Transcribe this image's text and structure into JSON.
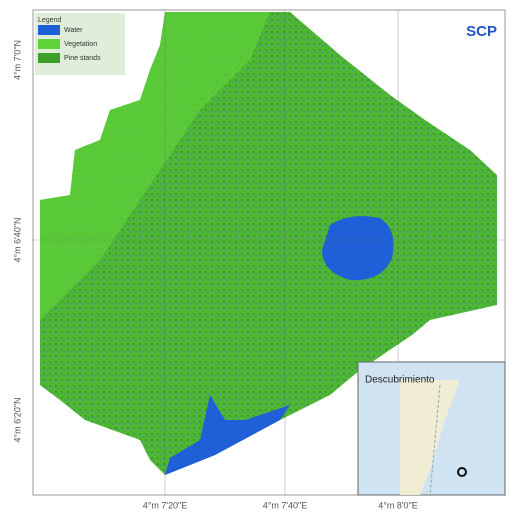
{
  "map": {
    "label": "SCP",
    "legend": {
      "title": "Legend",
      "items": [
        {
          "label": "Water",
          "color": "#1f5fd8"
        },
        {
          "label": "Vegetation",
          "color": "#5fd23a"
        },
        {
          "label": "Pine stands",
          "color": "#3f9f2a"
        }
      ]
    },
    "x_labels": [
      "4°m 7'20\"E",
      "4°m 7'40\"E",
      "4°m 8'0\"E"
    ],
    "y_labels": [
      "4°m 7'0\"N",
      "4°m 6'40\"N",
      "4°m 6'20\"N"
    ],
    "inset": {
      "label": "Descubrimiento"
    }
  }
}
